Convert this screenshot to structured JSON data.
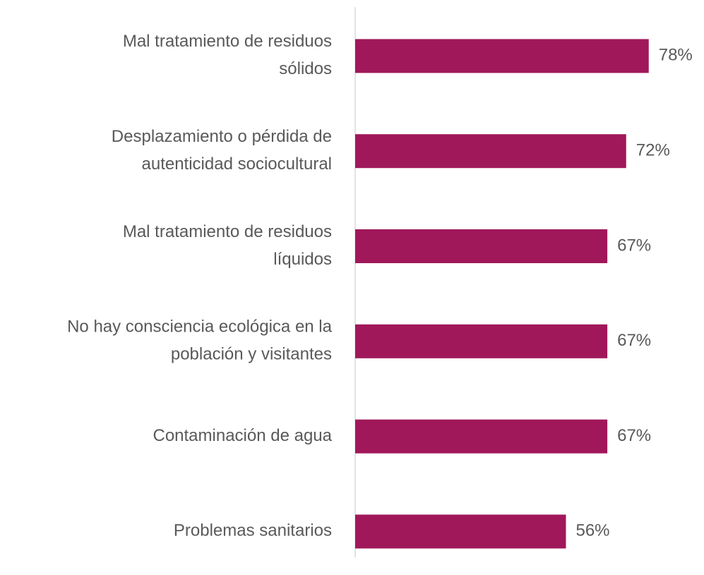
{
  "chart_data": {
    "type": "bar",
    "orientation": "horizontal",
    "categories": [
      [
        "Mal tratamiento de residuos",
        "sólidos"
      ],
      [
        "Desplazamiento o pérdida de",
        "autenticidad sociocultural"
      ],
      [
        "Mal tratamiento de residuos",
        "líquidos"
      ],
      [
        "No hay consciencia ecológica en la",
        "población y visitantes"
      ],
      [
        "Contaminación de agua"
      ],
      [
        "Problemas sanitarios"
      ]
    ],
    "values": [
      78,
      72,
      67,
      67,
      67,
      56
    ],
    "value_labels": [
      "78%",
      "72%",
      "67%",
      "67%",
      "67%",
      "56%"
    ],
    "color": "#a0185a",
    "xlim": [
      0,
      100
    ]
  }
}
